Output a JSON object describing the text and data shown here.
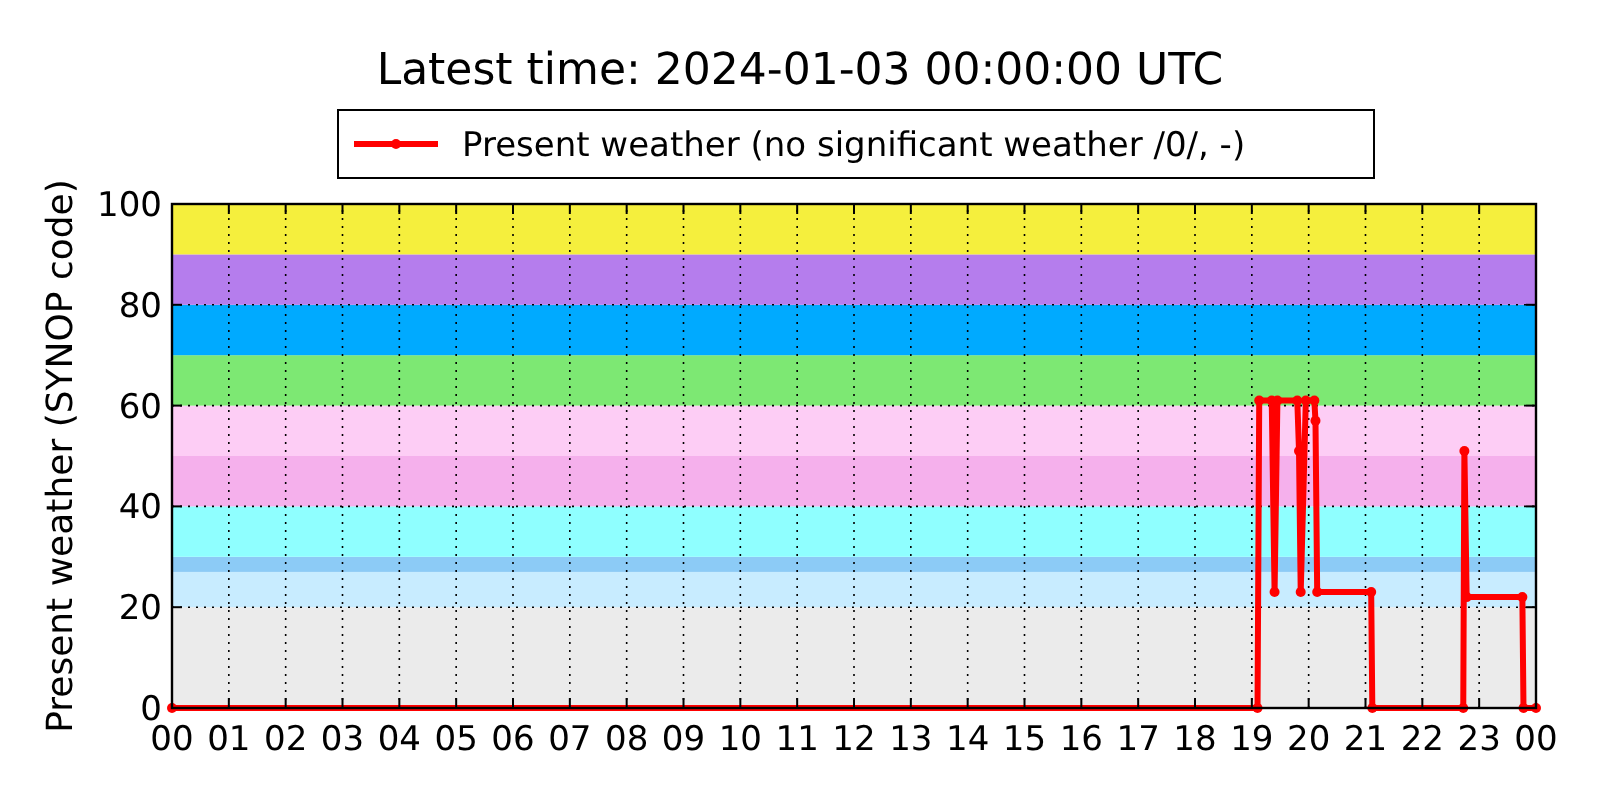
{
  "chart_data": {
    "type": "line",
    "title": "Latest time: 2024-01-03 00:00:00 UTC",
    "ylabel": "Present weather (SYNOP code)",
    "x": [
      0,
      19.1,
      19.13,
      19.35,
      19.4,
      19.45,
      19.8,
      19.83,
      19.86,
      19.95,
      20.1,
      20.12,
      20.15,
      21.1,
      21.12,
      22.72,
      22.74,
      22.78,
      23.76,
      23.78,
      24
    ],
    "series": [
      {
        "name": "Present weather (no significant weather /0/, -)",
        "color": "#ff0000",
        "values": [
          0,
          0,
          61,
          61,
          23,
          61,
          61,
          51,
          23,
          61,
          61,
          57,
          23,
          23,
          0,
          0,
          51,
          22,
          22,
          0,
          0
        ]
      }
    ],
    "xlim": [
      0,
      24
    ],
    "ylim": [
      0,
      100
    ],
    "yticks": [
      0,
      20,
      40,
      60,
      80,
      100
    ],
    "xticks": [
      {
        "value": 0,
        "label": "00"
      },
      {
        "value": 1,
        "label": "01"
      },
      {
        "value": 2,
        "label": "02"
      },
      {
        "value": 3,
        "label": "03"
      },
      {
        "value": 4,
        "label": "04"
      },
      {
        "value": 5,
        "label": "05"
      },
      {
        "value": 6,
        "label": "06"
      },
      {
        "value": 7,
        "label": "07"
      },
      {
        "value": 8,
        "label": "08"
      },
      {
        "value": 9,
        "label": "09"
      },
      {
        "value": 10,
        "label": "10"
      },
      {
        "value": 11,
        "label": "11"
      },
      {
        "value": 12,
        "label": "12"
      },
      {
        "value": 13,
        "label": "13"
      },
      {
        "value": 14,
        "label": "14"
      },
      {
        "value": 15,
        "label": "15"
      },
      {
        "value": 16,
        "label": "16"
      },
      {
        "value": 17,
        "label": "17"
      },
      {
        "value": 18,
        "label": "18"
      },
      {
        "value": 19,
        "label": "19"
      },
      {
        "value": 20,
        "label": "20"
      },
      {
        "value": 21,
        "label": "21"
      },
      {
        "value": 22,
        "label": "22"
      },
      {
        "value": 23,
        "label": "23"
      },
      {
        "value": 24,
        "label": "00"
      }
    ],
    "bands": [
      {
        "axis": "y",
        "from": 0,
        "to": 20,
        "color": "#ebebeb"
      },
      {
        "axis": "y",
        "from": 20,
        "to": 27,
        "color": "#c8ecff"
      },
      {
        "axis": "y",
        "from": 27,
        "to": 30,
        "color": "#8ccbf6"
      },
      {
        "axis": "y",
        "from": 30,
        "to": 40,
        "color": "#8fffff"
      },
      {
        "axis": "y",
        "from": 40,
        "to": 50,
        "color": "#f5b0ec"
      },
      {
        "axis": "y",
        "from": 50,
        "to": 60,
        "color": "#fdcdf5"
      },
      {
        "axis": "y",
        "from": 60,
        "to": 70,
        "color": "#7de873"
      },
      {
        "axis": "y",
        "from": 70,
        "to": 80,
        "color": "#00aaff"
      },
      {
        "axis": "y",
        "from": 80,
        "to": 90,
        "color": "#b57ded"
      },
      {
        "axis": "y",
        "from": 90,
        "to": 100,
        "color": "#f5ef3d"
      }
    ],
    "grid": true,
    "legend": "top",
    "marker": "circle",
    "line_style": "solid"
  }
}
